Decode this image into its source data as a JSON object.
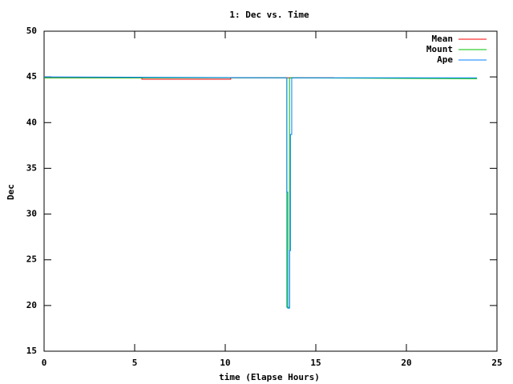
{
  "chart_data": {
    "type": "line",
    "title": "1: Dec vs. Time",
    "xlabel": "time (Elapse Hours)",
    "ylabel": "Dec",
    "xlim": [
      0,
      25
    ],
    "xticks": [
      0,
      5,
      10,
      15,
      20,
      25
    ],
    "ylim": [
      15,
      50
    ],
    "yticks": [
      15,
      20,
      25,
      30,
      35,
      40,
      45,
      50
    ],
    "legend": "top-right",
    "series": [
      {
        "name": "Mean",
        "color": "#ff0000",
        "x": [
          0,
          5.4,
          5.4,
          10.3,
          10.3,
          16.0
        ],
        "values": [
          44.9,
          44.9,
          44.75,
          44.75,
          44.9,
          44.9
        ]
      },
      {
        "name": "Mount",
        "color": "#00c000",
        "x": [
          0,
          13.4,
          13.4,
          13.55,
          13.55,
          23.9
        ],
        "values": [
          44.9,
          44.9,
          19.8,
          19.8,
          44.9,
          44.8
        ]
      },
      {
        "name": "Ape",
        "color": "#0080ff",
        "x": [
          0,
          13.4,
          13.4,
          13.45,
          13.45,
          13.55,
          13.55,
          13.6,
          13.6,
          13.67,
          13.67,
          23.9
        ],
        "values": [
          45.0,
          44.9,
          32.4,
          32.4,
          19.7,
          19.7,
          26.0,
          26.0,
          38.7,
          38.7,
          44.9,
          44.9
        ]
      }
    ]
  }
}
